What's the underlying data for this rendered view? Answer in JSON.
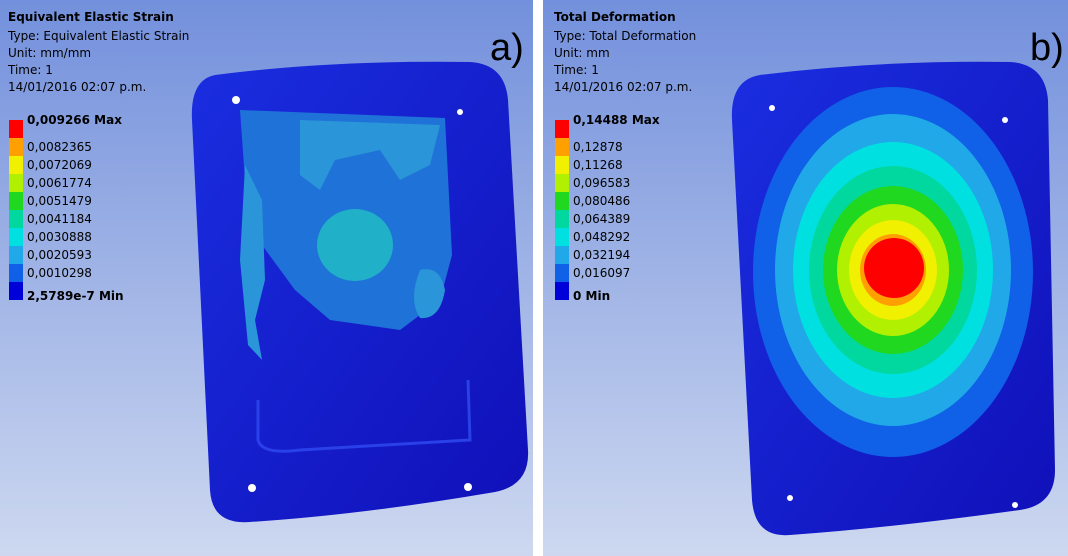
{
  "panels": [
    {
      "tag": "a)",
      "title": "Equivalent Elastic Strain",
      "type": "Type: Equivalent Elastic Strain",
      "unit": "Unit: mm/mm",
      "time": "Time: 1",
      "date": "14/01/2016 02:07 p.m.",
      "legend": [
        {
          "label": "0,009266 Max",
          "color": "#ff0000"
        },
        {
          "label": "0,0082365",
          "color": "#ffa000"
        },
        {
          "label": "0,0072069",
          "color": "#f0f000"
        },
        {
          "label": "0,0061774",
          "color": "#b0f000"
        },
        {
          "label": "0,0051479",
          "color": "#20d820"
        },
        {
          "label": "0,0041184",
          "color": "#00d8a0"
        },
        {
          "label": "0,0030888",
          "color": "#00e0e0"
        },
        {
          "label": "0,0020593",
          "color": "#20a8e8"
        },
        {
          "label": "0,0010298",
          "color": "#1060e8"
        },
        {
          "label": "2,5789e-7 Min",
          "color": "#0000d8"
        }
      ]
    },
    {
      "tag": "b)",
      "title": "Total Deformation",
      "type": "Type: Total Deformation",
      "unit": "Unit: mm",
      "time": "Time: 1",
      "date": "14/01/2016 02:07 p.m.",
      "legend": [
        {
          "label": "0,14488 Max",
          "color": "#ff0000"
        },
        {
          "label": "0,12878",
          "color": "#ffa000"
        },
        {
          "label": "0,11268",
          "color": "#f0f000"
        },
        {
          "label": "0,096583",
          "color": "#b0f000"
        },
        {
          "label": "0,080486",
          "color": "#20d820"
        },
        {
          "label": "0,064389",
          "color": "#00d8a0"
        },
        {
          "label": "0,048292",
          "color": "#00e0e0"
        },
        {
          "label": "0,032194",
          "color": "#20a8e8"
        },
        {
          "label": "0,016097",
          "color": "#1060e8"
        },
        {
          "label": "0 Min",
          "color": "#0000d8"
        }
      ]
    }
  ]
}
